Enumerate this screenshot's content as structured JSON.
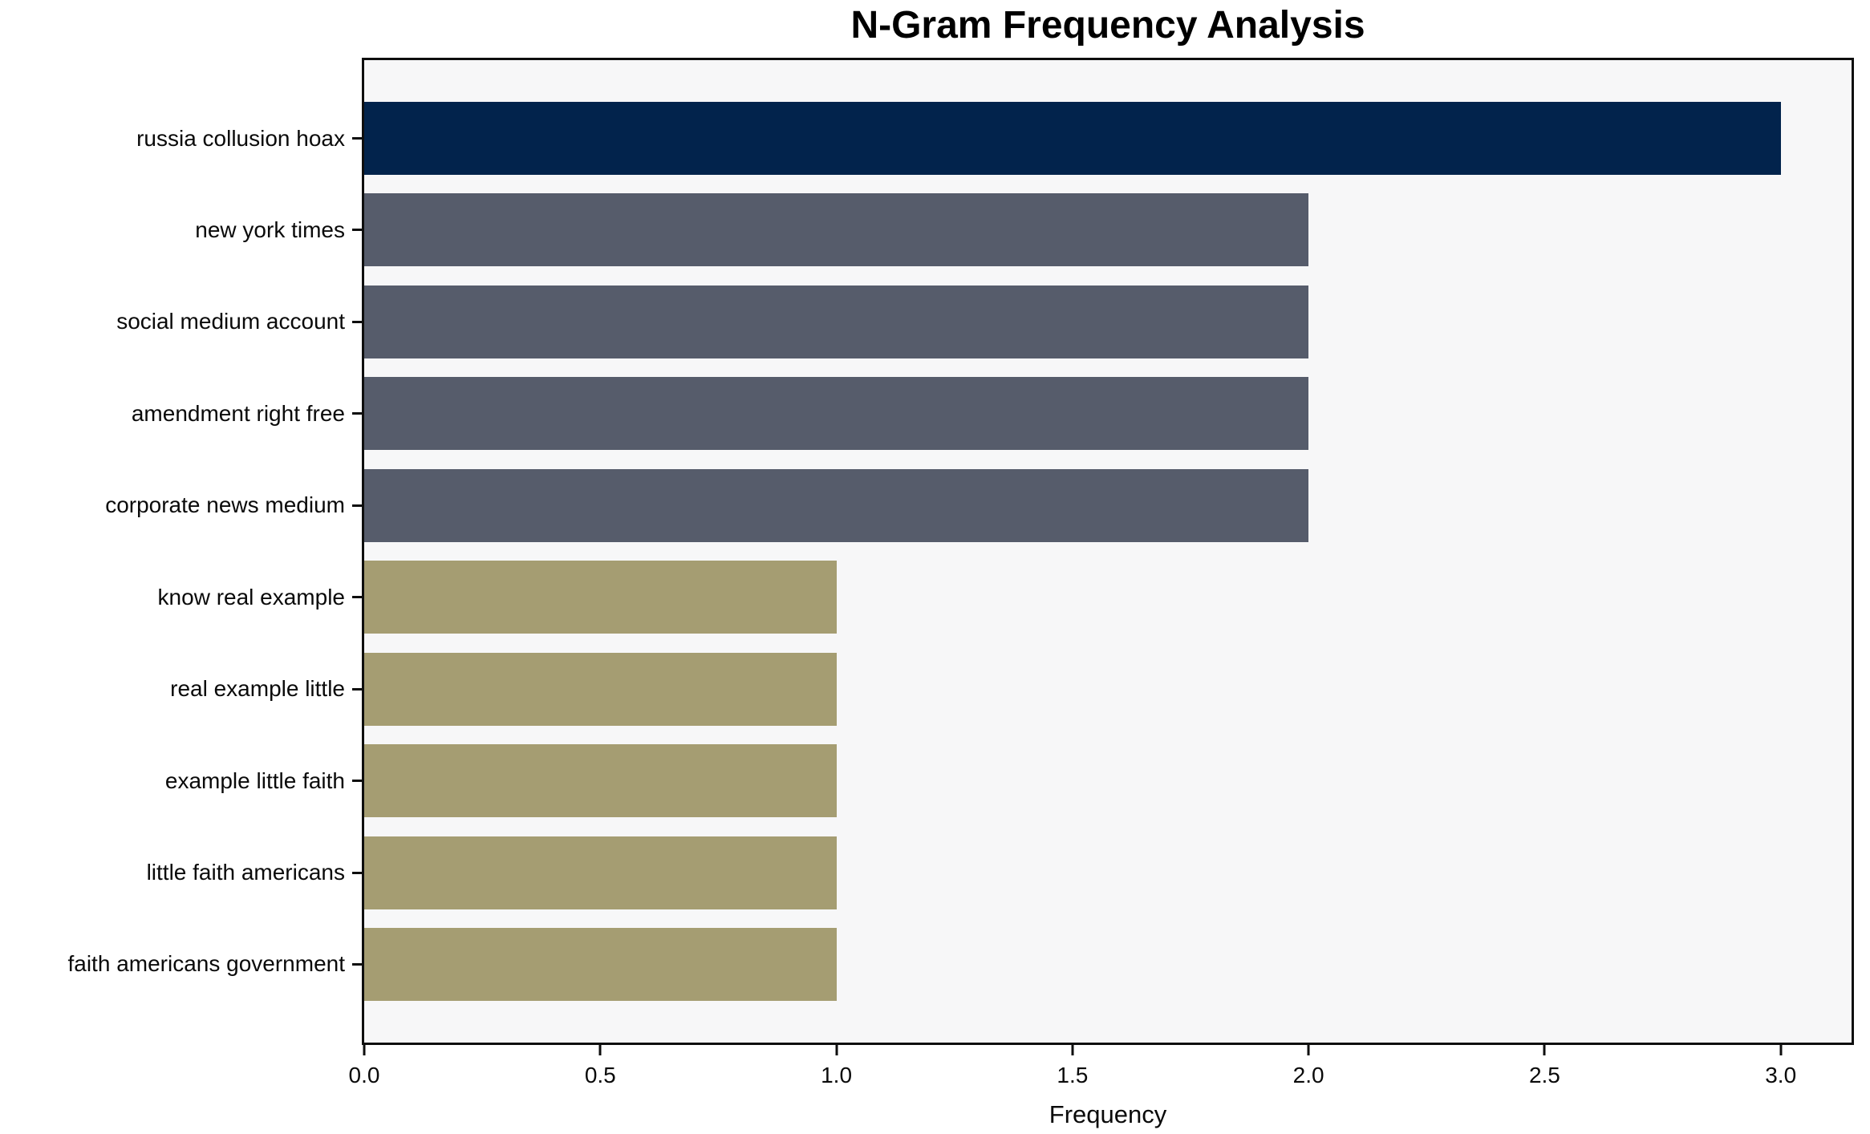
{
  "chart_data": {
    "type": "bar",
    "orientation": "horizontal",
    "title": "N-Gram Frequency Analysis",
    "xlabel": "Frequency",
    "ylabel": "",
    "categories": [
      "russia collusion hoax",
      "new york times",
      "social medium account",
      "amendment right free",
      "corporate news medium",
      "know real example",
      "real example little",
      "example little faith",
      "little faith americans",
      "faith americans government"
    ],
    "values": [
      3,
      2,
      2,
      2,
      2,
      1,
      1,
      1,
      1,
      1
    ],
    "bar_colors": [
      "#02234c",
      "#565c6b",
      "#565c6b",
      "#565c6b",
      "#565c6b",
      "#a59d72",
      "#a59d72",
      "#a59d72",
      "#a59d72",
      "#a59d72"
    ],
    "xlim": [
      0,
      3.15
    ],
    "xticks": [
      0.0,
      0.5,
      1.0,
      1.5,
      2.0,
      2.5,
      3.0
    ],
    "xtick_labels": [
      "0.0",
      "0.5",
      "1.0",
      "1.5",
      "2.0",
      "2.5",
      "3.0"
    ],
    "grid": false,
    "legend_position": "none",
    "colors": {
      "plot_background": "#f7f7f8",
      "figure_background": "#ffffff",
      "spine": "#0e0e0e",
      "text": "#0a0a0a"
    }
  }
}
